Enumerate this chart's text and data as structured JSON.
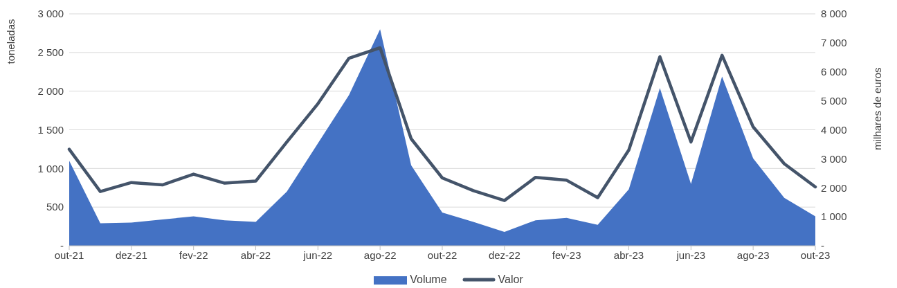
{
  "chart_data": {
    "type": "area",
    "ylabel": "toneladas",
    "y2label": "milhares de euros",
    "categories": [
      "out-21",
      null,
      "dez-21",
      null,
      "fev-22",
      null,
      "abr-22",
      null,
      "jun-22",
      null,
      "ago-22",
      null,
      "out-22",
      null,
      "dez-22",
      null,
      "fev-23",
      null,
      "abr-23",
      null,
      "jun-23",
      null,
      "ago-23",
      null,
      "out-23"
    ],
    "series": [
      {
        "name": "Volume",
        "color": "#4472c4",
        "values": [
          1100,
          290,
          300,
          340,
          380,
          330,
          310,
          700,
          1325,
          1950,
          2800,
          1040,
          430,
          310,
          180,
          330,
          360,
          270,
          730,
          2040,
          800,
          2190,
          1130,
          620,
          380
        ]
      },
      {
        "name": "Valor",
        "type": "line",
        "axis": "y2",
        "color": "#44546a",
        "values": [
          3330,
          1870,
          2180,
          2100,
          2470,
          2160,
          2230,
          3580,
          4900,
          6470,
          6830,
          3690,
          2340,
          1900,
          1560,
          2360,
          2260,
          1660,
          3300,
          6520,
          3580,
          6570,
          4100,
          2830,
          2030
        ]
      }
    ],
    "ylim": [
      0,
      3000
    ],
    "yticks": [
      {
        "value": 0,
        "label": "-"
      },
      {
        "value": 500,
        "label": "500"
      },
      {
        "value": 1000,
        "label": "1 000"
      },
      {
        "value": 1500,
        "label": "1 500"
      },
      {
        "value": 2000,
        "label": "2 000"
      },
      {
        "value": 2500,
        "label": "2 500"
      },
      {
        "value": 3000,
        "label": "3 000"
      }
    ],
    "y2lim": [
      0,
      8000
    ],
    "y2ticks": [
      {
        "value": 0,
        "label": "-"
      },
      {
        "value": 1000,
        "label": "1 000"
      },
      {
        "value": 2000,
        "label": "2 000"
      },
      {
        "value": 3000,
        "label": "3 000"
      },
      {
        "value": 4000,
        "label": "4 000"
      },
      {
        "value": 5000,
        "label": "5 000"
      },
      {
        "value": 6000,
        "label": "6 000"
      },
      {
        "value": 7000,
        "label": "7 000"
      },
      {
        "value": 8000,
        "label": "8 000"
      }
    ],
    "grid": "y",
    "legend": "bottom",
    "marker": "none",
    "line_style": "solid"
  }
}
